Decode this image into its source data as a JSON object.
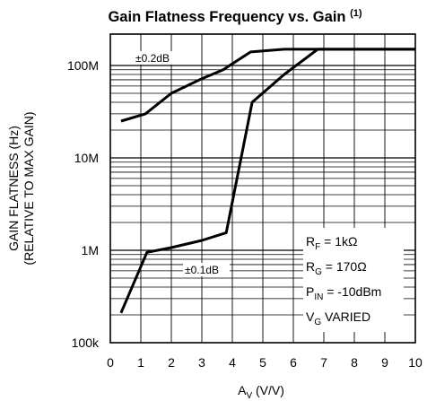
{
  "chart_data": {
    "type": "line",
    "title": "Gain Flatness Frequency vs. Gain",
    "title_superscript": "(1)",
    "xlabel": "A",
    "xlabel_sub": "V",
    "xlabel_unit": "(V/V)",
    "ylabel_line1": "GAIN FLATNESS (Hz)",
    "ylabel_line2": "(RELATIVE TO MAX GAIN)",
    "xlim": [
      0,
      10
    ],
    "ylim": [
      100000,
      200000000
    ],
    "yscale": "log",
    "grid": true,
    "x_ticks": [
      "0",
      "1",
      "2",
      "3",
      "4",
      "5",
      "6",
      "7",
      "8",
      "9",
      "10"
    ],
    "y_ticks": [
      {
        "value": 100000,
        "label": "100k"
      },
      {
        "value": 1000000,
        "label": "1M"
      },
      {
        "value": 10000000,
        "label": "10M"
      },
      {
        "value": 100000000,
        "label": "100M"
      }
    ],
    "series": [
      {
        "name": "±0.2dB",
        "x": [
          0.35,
          1.15,
          2.0,
          3.0,
          3.7,
          4.6,
          5.7,
          10.0
        ],
        "y": [
          25000000,
          30000000,
          50000000,
          72000000,
          90000000,
          140000000,
          150000000,
          150000000
        ]
      },
      {
        "name": "±0.1dB",
        "x": [
          0.35,
          1.2,
          2.0,
          3.0,
          3.8,
          4.65,
          5.7,
          6.8,
          10.0
        ],
        "y": [
          210000,
          950000,
          1070000,
          1280000,
          1550000,
          40000000,
          80000000,
          150000000,
          150000000
        ]
      }
    ],
    "annotations": {
      "rf": {
        "main": "R",
        "sub": "F",
        "rest": " = 1kΩ"
      },
      "rg": {
        "main": "R",
        "sub": "G",
        "rest": " = 170Ω"
      },
      "pin": {
        "main": "P",
        "sub": "IN",
        "rest": " = -10dBm"
      },
      "vg": {
        "main": "V",
        "sub": "G",
        "rest": " VARIED"
      }
    },
    "colors": {
      "line": "#000000",
      "grid": "#000000",
      "label_bg": "#ffffff"
    }
  }
}
